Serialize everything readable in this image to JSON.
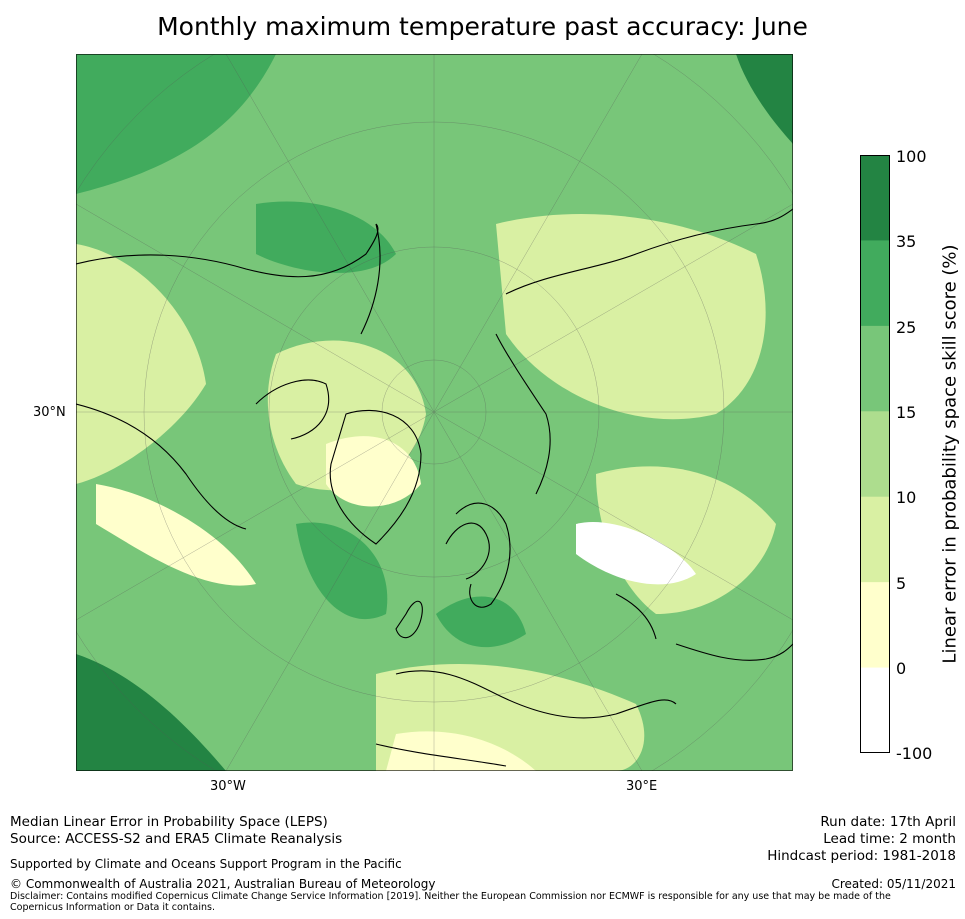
{
  "title": "Monthly maximum temperature past accuracy: June",
  "map": {
    "lat_label": "30°N",
    "lon_labels": [
      "30°W",
      "30°E"
    ],
    "palette": [
      "#ffffff",
      "#ffffcc",
      "#d9f0a3",
      "#addd8e",
      "#78c679",
      "#41ab5d",
      "#238443"
    ]
  },
  "colorbar": {
    "label": "Linear error in probability space skill score (%)",
    "ticks": [
      "100",
      "35",
      "25",
      "15",
      "10",
      "5",
      "0",
      "-100"
    ],
    "colors_top_to_bottom": [
      "#238443",
      "#41ab5d",
      "#78c679",
      "#addd8e",
      "#d9f0a3",
      "#ffffcc",
      "#ffffff"
    ]
  },
  "footer": {
    "line1": "Median Linear Error in Probability Space (LEPS)",
    "line2": "Source: ACCESS-S2 and ERA5 Climate Reanalysis",
    "support": "Supported by Climate and Oceans Support Program in the Pacific",
    "copyright": "© Commonwealth of Australia 2021, Australian Bureau of Meteorology",
    "disclaimer": "Disclaimer: Contains modified Copernicus Climate Change Service Information [2019]. Neither the European Commission nor ECMWF is responsible for any use that may be made of the Copernicus Information or Data it contains.",
    "run_date": "Run date: 17th April",
    "lead_time": "Lead time: 2 month",
    "hindcast": "Hindcast period: 1981-2018",
    "created": "Created: 05/11/2021"
  }
}
